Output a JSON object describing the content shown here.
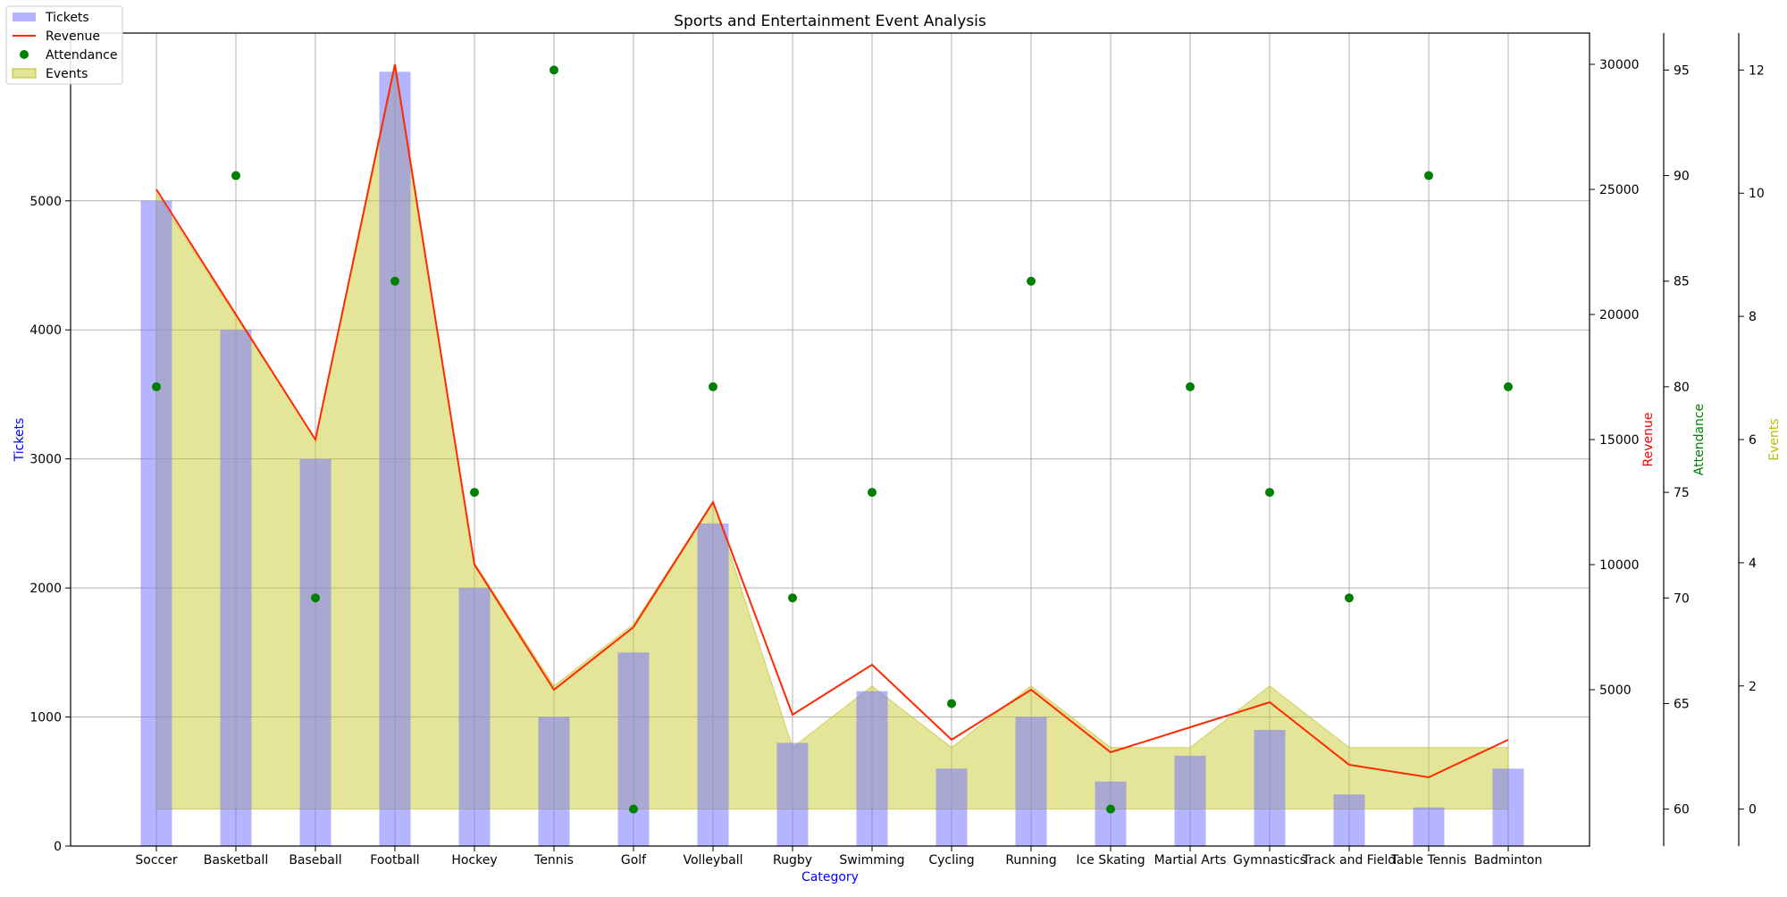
{
  "chart_data": {
    "type": "bar",
    "title": "Sports and Entertainment Event Analysis",
    "xlabel": "Category",
    "categories": [
      "Soccer",
      "Basketball",
      "Baseball",
      "Football",
      "Hockey",
      "Tennis",
      "Golf",
      "Volleyball",
      "Rugby",
      "Swimming",
      "Cycling",
      "Running",
      "Ice Skating",
      "Martial Arts",
      "Gymnastics",
      "Track and Field",
      "Table Tennis",
      "Badminton"
    ],
    "series": [
      {
        "name": "Tickets",
        "type": "bar",
        "axis": "Tickets",
        "color": "#aaaaff",
        "values": [
          5000,
          4000,
          3000,
          6000,
          2000,
          1000,
          1500,
          2500,
          800,
          1200,
          600,
          1000,
          500,
          700,
          900,
          400,
          300,
          600
        ]
      },
      {
        "name": "Revenue",
        "type": "line",
        "axis": "Revenue",
        "color": "#ff0000",
        "values": [
          25000,
          20000,
          15000,
          30000,
          10000,
          5000,
          7500,
          12500,
          4000,
          6000,
          3000,
          5000,
          2500,
          3500,
          4500,
          2000,
          1500,
          3000
        ]
      },
      {
        "name": "Attendance",
        "type": "scatter",
        "axis": "Attendance",
        "color": "#008000",
        "values": [
          80,
          90,
          70,
          85,
          75,
          95,
          60,
          80,
          70,
          75,
          65,
          85,
          60,
          80,
          75,
          70,
          90,
          80
        ]
      },
      {
        "name": "Events",
        "type": "area",
        "axis": "Events",
        "color": "#cccc33",
        "values": [
          10,
          8,
          6,
          12,
          4,
          2,
          3,
          5,
          1,
          2,
          1,
          2,
          1,
          1,
          2,
          1,
          1,
          1
        ]
      }
    ],
    "axes": [
      {
        "label": "Tickets",
        "side": "left",
        "color": "#0000ff",
        "ylim": [
          0,
          6300
        ],
        "ticks": [
          "0",
          "1000",
          "2000",
          "3000",
          "4000",
          "5000"
        ]
      },
      {
        "label": "Revenue",
        "side": "right",
        "color": "#ff0000",
        "ylim": [
          -1250,
          31250
        ],
        "ticks": [
          "5000",
          "10000",
          "15000",
          "20000",
          "25000",
          "30000"
        ]
      },
      {
        "label": "Attendance",
        "side": "right",
        "color": "#008000",
        "ylim": [
          58.25,
          96.75
        ],
        "ticks": [
          "60",
          "65",
          "70",
          "75",
          "80",
          "85",
          "90",
          "95"
        ]
      },
      {
        "label": "Events",
        "side": "right",
        "color": "#bbbb00",
        "ylim": [
          -0.6,
          12.6
        ],
        "ticks": [
          "0",
          "2",
          "4",
          "6",
          "8",
          "10",
          "12"
        ]
      }
    ],
    "grid": true,
    "legend": "top-left"
  }
}
